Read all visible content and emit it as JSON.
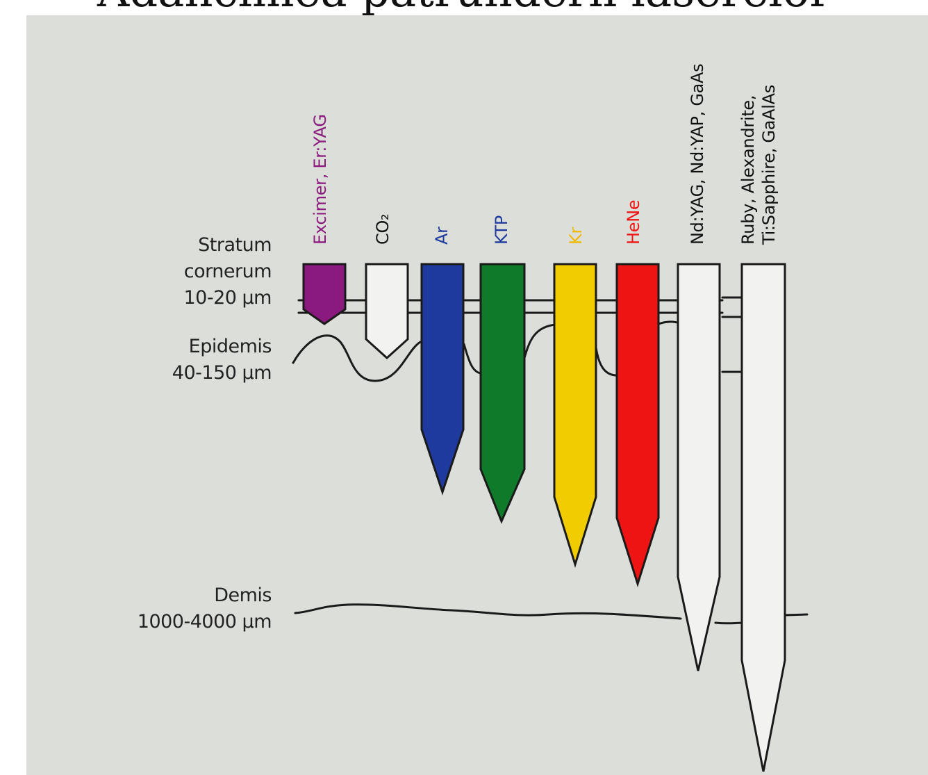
{
  "title": "Adâncimea pătrunderii laserelor",
  "layers": [
    {
      "id": "stratum",
      "label": "Stratum\ncornerum\n10-20 µm"
    },
    {
      "id": "epidermis",
      "label": "Epidemis\n40-150 µm"
    },
    {
      "id": "dermis",
      "label": "Demis\n1000-4000 µm"
    }
  ],
  "lasers": [
    {
      "label": "Excimer, Er:YAG",
      "color": "#8b1a7e"
    },
    {
      "label": "CO₂",
      "color": "#f2f2f0"
    },
    {
      "label": "Ar",
      "color": "#1f3a9e"
    },
    {
      "label": "KTP",
      "color": "#0e7a2a"
    },
    {
      "label": "Kr",
      "color": "#f1cc00"
    },
    {
      "label": "HeNe",
      "color": "#ee1414"
    },
    {
      "label": "Nd:YAG, Nd:YAP, GaAs",
      "color": "#f2f2f0"
    },
    {
      "label": "Ruby, Alexandrite,\nTi:Sapphire, GaAlAs",
      "color": "#f2f2f0"
    }
  ],
  "label_colors": {
    "excimer": "#8b1a7e",
    "co2": "#111111",
    "ar": "#1f3a9e",
    "ktp": "#1f3a9e",
    "kr": "#f1b800",
    "hene": "#ee1414",
    "ndyag": "#111111",
    "ruby": "#111111"
  }
}
